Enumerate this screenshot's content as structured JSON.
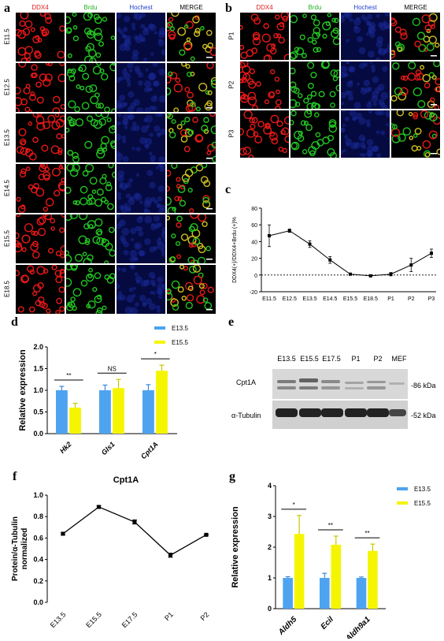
{
  "panels": {
    "a": "a",
    "b": "b",
    "c": "c",
    "d": "d",
    "e": "e",
    "f": "f",
    "g": "g"
  },
  "channels": [
    {
      "label": "DDX4",
      "color": "#e02020"
    },
    {
      "label": "Brdu",
      "color": "#20b020"
    },
    {
      "label": "Hochest",
      "color": "#2040d0"
    },
    {
      "label": "MERGE",
      "color": "#000000"
    }
  ],
  "panel_a_rows": [
    "E11.5",
    "E12.5",
    "E13.5",
    "E14.5",
    "E15.5",
    "E18.5"
  ],
  "panel_b_rows": [
    "P1",
    "P2",
    "P3"
  ],
  "panel_e": {
    "lanes": [
      "E13.5",
      "E15.5",
      "E17.5",
      "P1",
      "P2",
      "MEF"
    ],
    "bands": [
      {
        "name": "Cpt1A",
        "size": "-86 kDa"
      },
      {
        "name": "α-Tubulin",
        "size": "-52 kDa"
      }
    ]
  },
  "chart_data": [
    {
      "id": "c",
      "type": "line",
      "x": [
        "E11.5",
        "E12.5",
        "E13.5",
        "E14.5",
        "E15.5",
        "E18.5",
        "P1",
        "P2",
        "P3"
      ],
      "y": [
        47,
        53,
        37,
        18,
        1,
        -1,
        1,
        12,
        26
      ],
      "err": [
        13,
        2,
        4,
        4,
        1,
        1,
        2,
        8,
        5
      ],
      "ylabel": "DDX4(+)/DDX4+Brdu (+)%",
      "ylim": [
        -20,
        80
      ],
      "yticks": [
        "80",
        "60",
        "40",
        "20",
        "0",
        "-20"
      ],
      "ytickvals": [
        80,
        60,
        40,
        20,
        0,
        -20
      ]
    },
    {
      "id": "d",
      "type": "bar",
      "categories": [
        "Hk2",
        "Gls1",
        "Cpt1A"
      ],
      "series": [
        {
          "name": "E13.5",
          "color": "#4da3f0",
          "values": [
            1.0,
            1.0,
            1.0
          ],
          "err": [
            0.09,
            0.12,
            0.13
          ]
        },
        {
          "name": "E15.5",
          "color": "#f5f500",
          "values": [
            0.6,
            1.05,
            1.45
          ],
          "err": [
            0.1,
            0.2,
            0.13
          ]
        }
      ],
      "ylabel": "Relative expression",
      "ylim": [
        0,
        2.0
      ],
      "yticks": [
        "0.0",
        "0.5",
        "1.0",
        "1.5",
        "2.0"
      ],
      "ytickvals": [
        0,
        0.5,
        1.0,
        1.5,
        2.0
      ],
      "significance": [
        "**",
        "NS",
        "*"
      ]
    },
    {
      "id": "f",
      "type": "line",
      "title": "Cpt1A",
      "x": [
        "E13.5",
        "E15.5",
        "E17.5",
        "P1",
        "P2"
      ],
      "y": [
        0.64,
        0.89,
        0.75,
        0.44,
        0.63
      ],
      "err": [
        0.01,
        0.01,
        0.02,
        0.02,
        0.005
      ],
      "ylabel": "Protein/α-Tubulin normalized",
      "ylim": [
        0.0,
        1.0
      ],
      "yticks": [
        "0.0",
        "0.2",
        "0.4",
        "0.6",
        "0.8",
        "1.0"
      ],
      "ytickvals": [
        0,
        0.2,
        0.4,
        0.6,
        0.8,
        1.0
      ]
    },
    {
      "id": "g",
      "type": "bar",
      "categories": [
        "Aldh5",
        "Ecil",
        "Aldh9a1"
      ],
      "series": [
        {
          "name": "E13.5",
          "color": "#4da3f0",
          "values": [
            1.0,
            1.0,
            1.0
          ],
          "err": [
            0.04,
            0.15,
            0.03
          ]
        },
        {
          "name": "E15.5",
          "color": "#f5f500",
          "values": [
            2.43,
            2.08,
            1.88
          ],
          "err": [
            0.6,
            0.28,
            0.22
          ]
        }
      ],
      "ylabel": "Relative expression",
      "ylim": [
        0,
        4
      ],
      "yticks": [
        "0",
        "1",
        "2",
        "3",
        "4"
      ],
      "ytickvals": [
        0,
        1,
        2,
        3,
        4
      ],
      "significance": [
        "*",
        "**",
        "**"
      ]
    }
  ]
}
